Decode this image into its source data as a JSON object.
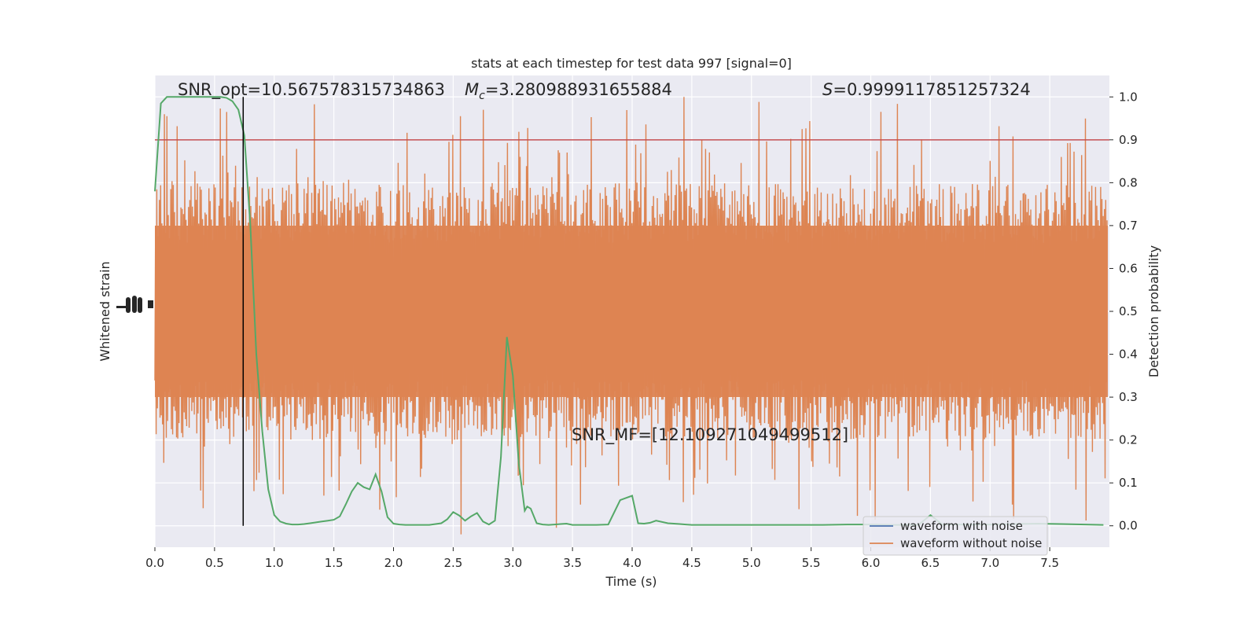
{
  "chart_data": {
    "type": "line",
    "title": "stats at each timestep for test data 997 [signal=0]",
    "xlabel": "Time (s)",
    "ylabel_left": "Whitened strain",
    "ylabel_right": "Detection probability",
    "xlim": [
      0.0,
      8.0
    ],
    "ylim_right": [
      -0.05,
      1.05
    ],
    "xticks": [
      "0.0",
      "0.5",
      "1.0",
      "1.5",
      "2.0",
      "2.5",
      "3.0",
      "3.5",
      "4.0",
      "4.5",
      "5.0",
      "5.5",
      "6.0",
      "6.5",
      "7.0",
      "7.5"
    ],
    "yticks_right": [
      "0.0",
      "0.1",
      "0.2",
      "0.3",
      "0.4",
      "0.5",
      "0.6",
      "0.7",
      "0.8",
      "0.9",
      "1.0"
    ],
    "grid": true,
    "background": "#EAEAF2",
    "annotations": {
      "snr_opt": "SNR_opt=10.567578315734863",
      "mc_symbol": "M",
      "mc_sub": "c",
      "mc_value": "=3.280988931655884",
      "s_symbol": "S",
      "s_value": "=0.9999117851257324",
      "snr_mf": "SNR_MF=[12.109271049499512]"
    },
    "threshold": {
      "y": 0.9,
      "color": "#C44E52"
    },
    "marker_time": 0.74,
    "legend": {
      "placement": "lower-right",
      "entries": [
        {
          "label": "waveform with noise",
          "color": "#4C72B0"
        },
        {
          "label": "waveform without noise",
          "color": "#DD8452"
        }
      ]
    },
    "series": [
      {
        "name": "detection probability",
        "color": "#55A868",
        "x": [
          0.0,
          0.05,
          0.1,
          0.15,
          0.2,
          0.25,
          0.3,
          0.35,
          0.4,
          0.45,
          0.5,
          0.55,
          0.6,
          0.65,
          0.7,
          0.75,
          0.8,
          0.85,
          0.9,
          0.95,
          1.0,
          1.05,
          1.1,
          1.15,
          1.2,
          1.25,
          1.3,
          1.35,
          1.4,
          1.45,
          1.5,
          1.55,
          1.6,
          1.65,
          1.7,
          1.75,
          1.8,
          1.85,
          1.9,
          1.95,
          2.0,
          2.05,
          2.1,
          2.2,
          2.3,
          2.4,
          2.45,
          2.5,
          2.55,
          2.6,
          2.65,
          2.7,
          2.75,
          2.8,
          2.85,
          2.9,
          2.95,
          3.0,
          3.05,
          3.1,
          3.12,
          3.15,
          3.2,
          3.25,
          3.3,
          3.35,
          3.4,
          3.45,
          3.5,
          3.6,
          3.7,
          3.8,
          3.9,
          4.0,
          4.05,
          4.1,
          4.15,
          4.2,
          4.3,
          4.4,
          4.45,
          4.5,
          4.6,
          4.8,
          5.0,
          5.2,
          5.4,
          5.6,
          5.8,
          6.0,
          6.2,
          6.4,
          6.5,
          6.6,
          6.8,
          7.0,
          7.2,
          7.4,
          7.6,
          7.8,
          7.95
        ],
        "y": [
          0.78,
          0.985,
          1.0,
          1.0,
          1.0,
          1.0,
          1.0,
          1.0,
          1.0,
          1.0,
          1.0,
          1.0,
          0.998,
          0.99,
          0.97,
          0.91,
          0.7,
          0.4,
          0.22,
          0.085,
          0.025,
          0.01,
          0.005,
          0.003,
          0.003,
          0.004,
          0.006,
          0.008,
          0.01,
          0.012,
          0.014,
          0.022,
          0.05,
          0.08,
          0.1,
          0.09,
          0.085,
          0.12,
          0.08,
          0.02,
          0.005,
          0.003,
          0.002,
          0.002,
          0.002,
          0.006,
          0.015,
          0.032,
          0.024,
          0.012,
          0.022,
          0.03,
          0.01,
          0.003,
          0.012,
          0.16,
          0.44,
          0.35,
          0.145,
          0.035,
          0.045,
          0.04,
          0.006,
          0.003,
          0.002,
          0.003,
          0.004,
          0.005,
          0.002,
          0.002,
          0.002,
          0.003,
          0.06,
          0.07,
          0.006,
          0.005,
          0.007,
          0.012,
          0.006,
          0.004,
          0.003,
          0.002,
          0.002,
          0.002,
          0.002,
          0.002,
          0.002,
          0.002,
          0.003,
          0.003,
          0.002,
          0.002,
          0.025,
          0.003,
          0.003,
          0.003,
          0.004,
          0.005,
          0.004,
          0.003,
          0.002
        ]
      },
      {
        "name": "waveform without noise",
        "color": "#DD8452",
        "note_range": "dense noise band spanning roughly 0.0–1.0 on the probability axis scale, mostly 0.3–0.7"
      }
    ]
  }
}
